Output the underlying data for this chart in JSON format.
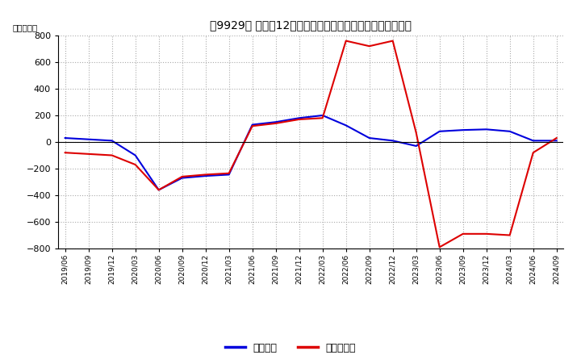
{
  "title": "［9929］ 利益の12か月移動合計の対前年同期増減額の推移",
  "ylabel": "（百万円）",
  "ylim": [
    -800,
    800
  ],
  "yticks": [
    -800,
    -600,
    -400,
    -200,
    0,
    200,
    400,
    600,
    800
  ],
  "legend_labels": [
    "経常利益",
    "当期純利益"
  ],
  "line_colors": [
    "#0000dd",
    "#dd0000"
  ],
  "dates": [
    "2019/06",
    "2019/09",
    "2019/12",
    "2020/03",
    "2020/06",
    "2020/09",
    "2020/12",
    "2021/03",
    "2021/06",
    "2021/09",
    "2021/12",
    "2022/03",
    "2022/06",
    "2022/09",
    "2022/12",
    "2023/03",
    "2023/06",
    "2023/09",
    "2023/12",
    "2024/03",
    "2024/06",
    "2024/09"
  ],
  "ordinary_profit": [
    30,
    20,
    10,
    -100,
    -360,
    -270,
    -255,
    -245,
    130,
    150,
    180,
    200,
    125,
    30,
    10,
    -30,
    80,
    90,
    95,
    80,
    10,
    10
  ],
  "net_profit": [
    -80,
    -90,
    -100,
    -170,
    -360,
    -260,
    -245,
    -235,
    120,
    140,
    170,
    180,
    760,
    720,
    760,
    70,
    -790,
    -690,
    -690,
    -700,
    -80,
    30
  ],
  "background_color": "#ffffff",
  "grid_color": "#aaaaaa",
  "grid_style": "dotted"
}
